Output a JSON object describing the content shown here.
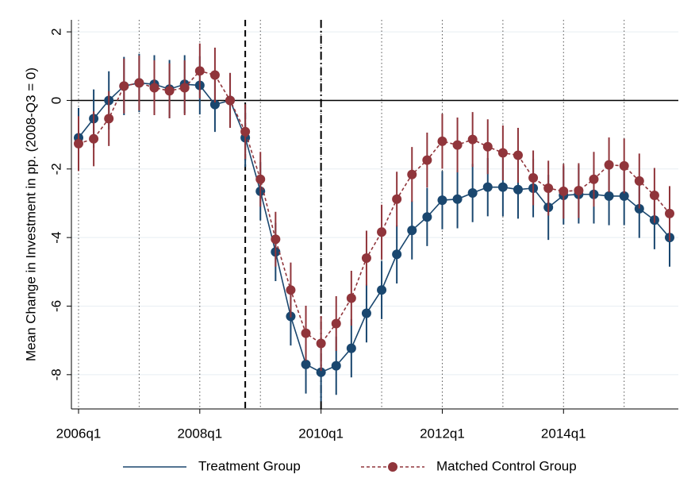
{
  "chart_data": {
    "type": "line",
    "ylabel": "Mean Change in Investment in pp. (2008-Q3 = 0)",
    "categories": [
      "2006q1",
      null,
      null,
      null,
      null,
      null,
      null,
      null,
      "2008q1",
      null,
      null,
      null,
      null,
      null,
      null,
      null,
      "2010q1",
      null,
      null,
      null,
      null,
      null,
      null,
      null,
      "2012q1",
      null,
      null,
      null,
      null,
      null,
      null,
      null,
      "2014q1",
      null,
      null,
      null,
      null,
      null,
      null,
      null
    ],
    "series": [
      {
        "name": "Treatment Group",
        "color": "#1a476f",
        "dash": "solid",
        "legend_marker": false,
        "values": [
          -1.09,
          -0.53,
          0.0,
          0.42,
          0.51,
          0.47,
          0.33,
          0.47,
          0.44,
          -0.12,
          0.0,
          -1.09,
          -2.65,
          -4.42,
          -6.3,
          -7.7,
          -7.93,
          -7.74,
          -7.23,
          -6.21,
          -5.53,
          -4.49,
          -3.79,
          -3.4,
          -2.91,
          -2.88,
          -2.7,
          -2.53,
          -2.53,
          -2.6,
          -2.56,
          -3.12,
          -2.77,
          -2.74,
          -2.74,
          -2.79,
          -2.79,
          -3.16,
          -3.49,
          -4.0
        ],
        "errors": [
          0.87,
          0.85,
          0.85,
          0.85,
          0.85,
          0.85,
          0.85,
          0.85,
          0.85,
          0.8,
          0.8,
          0.85,
          0.85,
          0.85,
          0.85,
          0.85,
          0.85,
          0.85,
          0.85,
          0.85,
          0.85,
          0.85,
          0.85,
          0.85,
          0.85,
          0.85,
          0.85,
          0.85,
          0.85,
          0.85,
          0.85,
          0.95,
          0.85,
          0.85,
          0.85,
          0.85,
          0.85,
          0.85,
          0.85,
          0.85
        ]
      },
      {
        "name": "Matched Control Group",
        "color": "#90353b",
        "dash": "dashed",
        "legend_marker": true,
        "values": [
          -1.26,
          -1.12,
          -0.53,
          0.42,
          0.51,
          0.37,
          0.28,
          0.37,
          0.86,
          0.74,
          0.0,
          -0.91,
          -2.3,
          -4.05,
          -5.53,
          -6.79,
          -7.09,
          -6.51,
          -5.77,
          -4.6,
          -3.84,
          -2.88,
          -2.16,
          -1.74,
          -1.19,
          -1.3,
          -1.14,
          -1.35,
          -1.53,
          -1.6,
          -2.26,
          -2.56,
          -2.65,
          -2.63,
          -2.3,
          -1.88,
          -1.91,
          -2.35,
          -2.77,
          -3.3
        ],
        "errors": [
          0.8,
          0.8,
          0.8,
          0.8,
          0.8,
          0.8,
          0.8,
          0.8,
          0.8,
          0.8,
          0.8,
          0.8,
          0.8,
          0.8,
          0.8,
          0.8,
          0.8,
          0.8,
          0.8,
          0.8,
          0.8,
          0.8,
          0.8,
          0.8,
          0.8,
          0.8,
          0.8,
          0.8,
          0.8,
          0.8,
          0.8,
          0.8,
          0.8,
          0.8,
          0.8,
          0.8,
          0.8,
          0.8,
          0.8,
          0.8
        ]
      }
    ],
    "ylim": [
      -9.0,
      2.35
    ],
    "yticks": [
      2,
      0,
      -2,
      -4,
      -6,
      -8
    ],
    "yline": 0,
    "reference_lines": [
      {
        "at": 11,
        "style": "dashed"
      },
      {
        "at": 16,
        "style": "dashdot"
      }
    ],
    "grid": true
  }
}
